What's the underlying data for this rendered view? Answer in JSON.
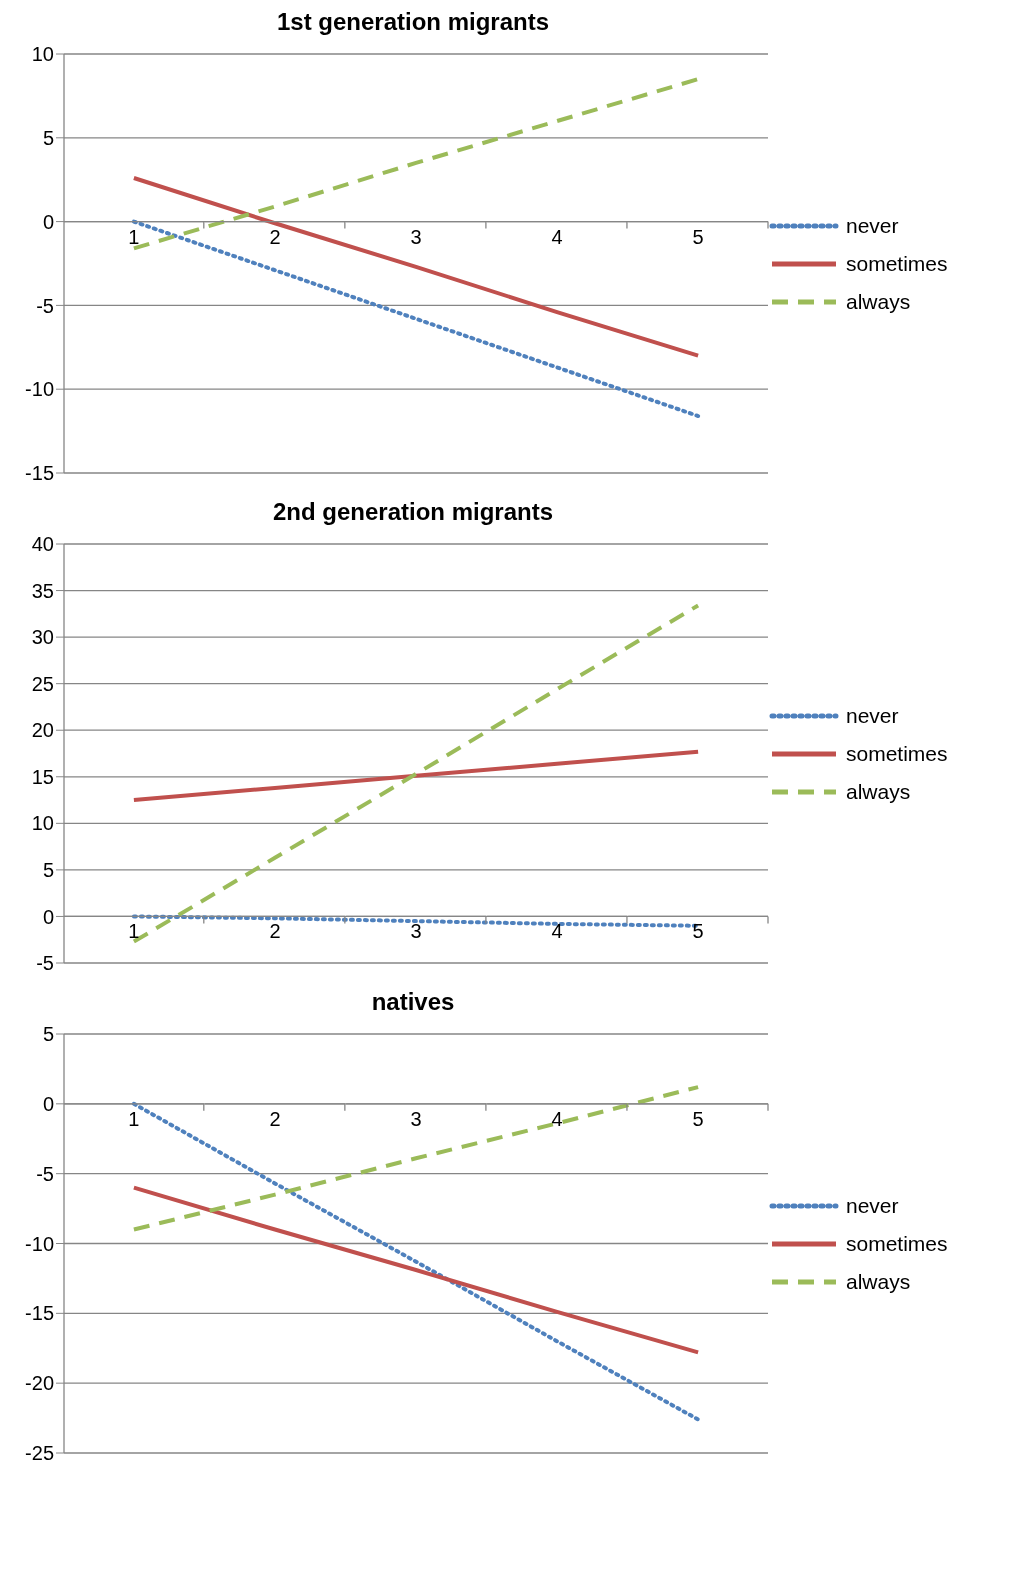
{
  "chart_data": [
    {
      "type": "line",
      "title": "1st generation migrants",
      "categories": [
        "1",
        "2",
        "3",
        "4",
        "5"
      ],
      "ylim": [
        -15,
        10
      ],
      "yticks": [
        -15,
        -10,
        -5,
        0,
        5,
        10
      ],
      "grid": "y",
      "legend": "right",
      "marker": "none",
      "series": [
        {
          "name": "never",
          "color": "#4f81bd",
          "line_style": "dotted",
          "values": [
            0,
            -2.9,
            -5.8,
            -8.7,
            -11.6
          ]
        },
        {
          "name": "sometimes",
          "color": "#c0504d",
          "line_style": "solid",
          "values": [
            2.6,
            -0.1,
            -2.7,
            -5.4,
            -8.0
          ]
        },
        {
          "name": "always",
          "color": "#9bbb59",
          "line_style": "dashed",
          "values": [
            -1.6,
            0.9,
            3.5,
            6.0,
            8.5
          ]
        }
      ]
    },
    {
      "type": "line",
      "title": "2nd generation migrants",
      "categories": [
        "1",
        "2",
        "3",
        "4",
        "5"
      ],
      "ylim": [
        -5,
        40
      ],
      "yticks": [
        -5,
        0,
        5,
        10,
        15,
        20,
        25,
        30,
        35,
        40
      ],
      "grid": "y",
      "legend": "right",
      "marker": "none",
      "series": [
        {
          "name": "never",
          "color": "#4f81bd",
          "line_style": "dotted",
          "values": [
            0,
            -0.2,
            -0.5,
            -0.8,
            -1.0
          ]
        },
        {
          "name": "sometimes",
          "color": "#c0504d",
          "line_style": "solid",
          "values": [
            12.5,
            13.8,
            15.1,
            16.4,
            17.7
          ]
        },
        {
          "name": "always",
          "color": "#9bbb59",
          "line_style": "dashed",
          "values": [
            -2.7,
            6.3,
            15.3,
            24.4,
            33.4
          ]
        }
      ]
    },
    {
      "type": "line",
      "title": "natives",
      "categories": [
        "1",
        "2",
        "3",
        "4",
        "5"
      ],
      "ylim": [
        -25,
        5
      ],
      "yticks": [
        -25,
        -20,
        -15,
        -10,
        -5,
        0,
        5
      ],
      "grid": "y",
      "legend": "right",
      "marker": "none",
      "series": [
        {
          "name": "never",
          "color": "#4f81bd",
          "line_style": "dotted",
          "values": [
            0,
            -5.7,
            -11.3,
            -17.0,
            -22.6
          ]
        },
        {
          "name": "sometimes",
          "color": "#c0504d",
          "line_style": "solid",
          "values": [
            -6.0,
            -9.0,
            -11.9,
            -14.9,
            -17.8
          ]
        },
        {
          "name": "always",
          "color": "#9bbb59",
          "line_style": "dashed",
          "values": [
            -9.0,
            -6.5,
            -3.9,
            -1.4,
            1.2
          ]
        }
      ]
    }
  ]
}
